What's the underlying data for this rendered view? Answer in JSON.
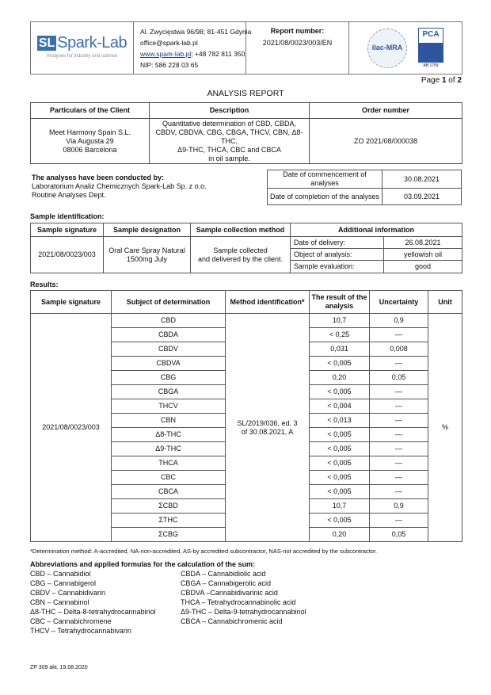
{
  "header": {
    "logo_text": "Spark-Lab",
    "logo_mark": "SL",
    "logo_tagline": "Analyses for industry and science",
    "address": "Al. Zwycięstwa 96/98; 81-451 Gdynia",
    "email": "office@spark-lab.pl",
    "website": "www.spark-lab.pl",
    "phone": "; +48 782 811 350",
    "nip": "NIP: 586 228 03 65",
    "report_number_label": "Report number:",
    "report_number": "2021/08/0023/003/EN",
    "ilac_logo": "ilac-MRA",
    "pca_logo": "PCA",
    "accreditation_no": "AB 1759"
  },
  "page": {
    "prefix": "Page ",
    "current": "1",
    "of": " of ",
    "total": "2"
  },
  "title": "ANALYSIS REPORT",
  "client_table": {
    "headers": [
      "Particulars of the Client",
      "Description",
      "Order number"
    ],
    "client": [
      "Meet Harmony Spain S.L.",
      "Via Augusta 29",
      "08006 Barcelona"
    ],
    "description": [
      "Quantitative determination of CBD, CBDA,",
      "CBDV, CBDVA, CBG, CBGA, THCV, CBN, Δ8-THC,",
      "Δ9-THC, THCA, CBC and CBCA",
      "in oil sample."
    ],
    "order_number": "ZO 2021/08/000038"
  },
  "conducted": {
    "heading": "The analyses have been conducted by:",
    "lines": [
      "Laboratorium Analiz Chemicznych Spark-Lab Sp. z o.o.",
      "Routine Analyses Dept."
    ]
  },
  "dates": [
    {
      "label": "Date of commencement of analyses",
      "value": "30.08.2021"
    },
    {
      "label": "Date of completion of the analyses",
      "value": "03.09.2021"
    }
  ],
  "sample_id": {
    "heading": "Sample identification:",
    "headers": [
      "Sample signature",
      "Sample designation",
      "Sample collection method",
      "Additional information"
    ],
    "signature": "2021/08/0023/003",
    "designation": [
      "Oral Care Spray Natural",
      "1500mg July"
    ],
    "collection": [
      "Sample collected",
      "and delivered by the client."
    ],
    "info": [
      {
        "label": "Date of delivery:",
        "value": "26.08.2021"
      },
      {
        "label": "Object of analysis:",
        "value": "yellowish oil"
      },
      {
        "label": "Sample evaluation:",
        "value": "good"
      }
    ]
  },
  "results": {
    "heading": "Results:",
    "headers": [
      "Sample signature",
      "Subject of determination",
      "Method identification*",
      "The result of the analysis",
      "Uncertainty",
      "Unit"
    ],
    "signature": "2021/08/0023/003",
    "method": [
      "SL/2019/036, ed. 3",
      "of 30.08.2021, A"
    ],
    "unit": "%",
    "rows": [
      {
        "subject": "CBD",
        "result": "10,7",
        "uncertainty": "0,9"
      },
      {
        "subject": "CBDA",
        "result": "< 0,25",
        "uncertainty": "—"
      },
      {
        "subject": "CBDV",
        "result": "0,031",
        "uncertainty": "0,008"
      },
      {
        "subject": "CBDVA",
        "result": "< 0,005",
        "uncertainty": "—"
      },
      {
        "subject": "CBG",
        "result": "0,20",
        "uncertainty": "0,05"
      },
      {
        "subject": "CBGA",
        "result": "< 0,005",
        "uncertainty": "—"
      },
      {
        "subject": "THCV",
        "result": "< 0,004",
        "uncertainty": "—"
      },
      {
        "subject": "CBN",
        "result": "< 0,013",
        "uncertainty": "—"
      },
      {
        "subject": "Δ8-THC",
        "result": "< 0,005",
        "uncertainty": "—"
      },
      {
        "subject": "Δ9-THC",
        "result": "< 0,005",
        "uncertainty": "—"
      },
      {
        "subject": "THCA",
        "result": "< 0,005",
        "uncertainty": "—"
      },
      {
        "subject": "CBC",
        "result": "< 0,005",
        "uncertainty": "—"
      },
      {
        "subject": "CBCA",
        "result": "< 0,005",
        "uncertainty": "—"
      },
      {
        "subject": "ΣCBD",
        "result": "10,7",
        "uncertainty": "0,9"
      },
      {
        "subject": "ΣTHC",
        "result": "< 0,005",
        "uncertainty": "—"
      },
      {
        "subject": "ΣCBG",
        "result": "0,20",
        "uncertainty": "0,05"
      }
    ],
    "footnote": "*Determination method: A-accredited, NA-non-accredited, AS-by accredited subcontractor, NAS-not accredited by the subcontractor."
  },
  "abbreviations": {
    "heading": "Abbreviations and applied formulas for the calculation of the sum:",
    "left": [
      "CBD – Cannabidiol",
      "CBG – Cannabigerol",
      "CBDV – Cannabidivarin",
      "CBN – Cannabinol",
      "Δ8-THC – Delta-8-tetrahydrocannabinol",
      "CBC – Cannabichromene",
      "THCV – Tetrahydrocannabivarin"
    ],
    "right": [
      "CBDA – Cannabidiolic acid",
      "CBGA – Cannabigerolic acid",
      "CBDVA –Cannabidivarinic acid",
      "THCA – Tetrahydrocannabinolic acid",
      "Δ9-THC – Delta-9-tetrahydrocannabinol",
      "CBCA – Cannabichromenic acid"
    ]
  },
  "form_code": "ZP 309 akt. 19.08.2020"
}
